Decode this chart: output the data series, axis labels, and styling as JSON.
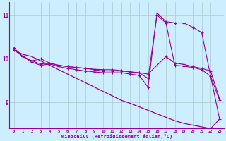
{
  "xlabel": "Windchill (Refroidissement éolien,°C)",
  "ylabel": "",
  "bg_color": "#cceeff",
  "line_color": "#990099",
  "grid_color": "#aacccc",
  "xlim": [
    -0.5,
    23.5
  ],
  "ylim": [
    8.4,
    11.3
  ],
  "yticks": [
    9,
    10,
    11
  ],
  "xticks": [
    0,
    1,
    2,
    3,
    4,
    5,
    6,
    7,
    8,
    9,
    10,
    11,
    12,
    13,
    14,
    15,
    16,
    17,
    18,
    19,
    20,
    21,
    22,
    23
  ],
  "line1_x": [
    0,
    1,
    2,
    3,
    4,
    5,
    6,
    7,
    8,
    9,
    10,
    11,
    12,
    13,
    14,
    15,
    16,
    17,
    18,
    19,
    20,
    21,
    22,
    23
  ],
  "line1_y": [
    10.2,
    10.1,
    10.05,
    9.95,
    9.85,
    9.75,
    9.65,
    9.55,
    9.45,
    9.35,
    9.25,
    9.15,
    9.05,
    8.98,
    8.9,
    8.82,
    8.74,
    8.66,
    8.58,
    8.52,
    8.48,
    8.44,
    8.4,
    8.62
  ],
  "line2_x": [
    1,
    2,
    3,
    4,
    5,
    6,
    7,
    8,
    9,
    10,
    11,
    12,
    13,
    14,
    15,
    16,
    17,
    18,
    19,
    20,
    21,
    22,
    23
  ],
  "line2_y": [
    10.05,
    9.95,
    10.0,
    9.9,
    9.85,
    9.82,
    9.8,
    9.78,
    9.75,
    9.72,
    9.72,
    9.72,
    9.7,
    9.68,
    9.65,
    9.85,
    10.05,
    9.9,
    9.87,
    9.82,
    9.78,
    9.72,
    9.08
  ],
  "line3_x": [
    0,
    1,
    2,
    3,
    4,
    5,
    6,
    7,
    8,
    9,
    10,
    11,
    12,
    13,
    14,
    15,
    16,
    17,
    18,
    19,
    20,
    21,
    22,
    23
  ],
  "line3_y": [
    10.2,
    10.05,
    9.95,
    9.88,
    9.9,
    9.85,
    9.82,
    9.8,
    9.78,
    9.76,
    9.75,
    9.75,
    9.73,
    9.7,
    9.68,
    9.55,
    11.0,
    10.82,
    9.85,
    9.83,
    9.8,
    9.75,
    9.6,
    9.05
  ],
  "line4_x": [
    0,
    1,
    2,
    3,
    4,
    5,
    6,
    7,
    8,
    9,
    10,
    11,
    12,
    13,
    14,
    15,
    16,
    17,
    18,
    19,
    20,
    21,
    22,
    23
  ],
  "line4_y": [
    10.25,
    10.05,
    9.92,
    9.85,
    9.88,
    9.82,
    9.78,
    9.75,
    9.72,
    9.7,
    9.68,
    9.68,
    9.68,
    9.65,
    9.62,
    9.35,
    11.05,
    10.85,
    10.82,
    10.82,
    10.72,
    10.6,
    9.6,
    8.62
  ]
}
